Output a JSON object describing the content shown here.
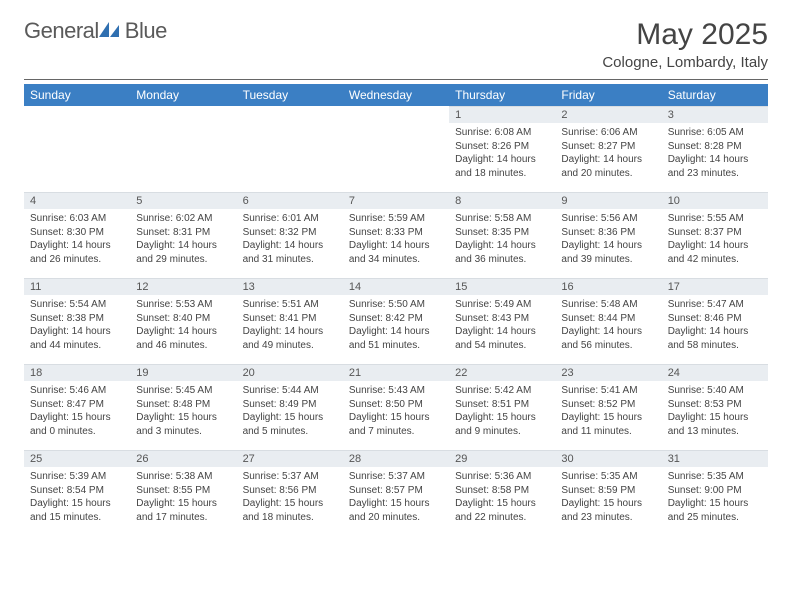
{
  "brand": {
    "name_a": "General",
    "name_b": "Blue"
  },
  "title": "May 2025",
  "subtitle": "Cologne, Lombardy, Italy",
  "colors": {
    "header_bg": "#3b7fc4",
    "daynum_bg": "#e9edf1",
    "text": "#444444"
  },
  "columns": [
    "Sunday",
    "Monday",
    "Tuesday",
    "Wednesday",
    "Thursday",
    "Friday",
    "Saturday"
  ],
  "weeks": [
    [
      {
        "n": "",
        "sr": "",
        "ss": "",
        "dl": "",
        "empty": true
      },
      {
        "n": "",
        "sr": "",
        "ss": "",
        "dl": "",
        "empty": true
      },
      {
        "n": "",
        "sr": "",
        "ss": "",
        "dl": "",
        "empty": true
      },
      {
        "n": "",
        "sr": "",
        "ss": "",
        "dl": "",
        "empty": true
      },
      {
        "n": "1",
        "sr": "Sunrise: 6:08 AM",
        "ss": "Sunset: 8:26 PM",
        "dl": "Daylight: 14 hours and 18 minutes."
      },
      {
        "n": "2",
        "sr": "Sunrise: 6:06 AM",
        "ss": "Sunset: 8:27 PM",
        "dl": "Daylight: 14 hours and 20 minutes."
      },
      {
        "n": "3",
        "sr": "Sunrise: 6:05 AM",
        "ss": "Sunset: 8:28 PM",
        "dl": "Daylight: 14 hours and 23 minutes."
      }
    ],
    [
      {
        "n": "4",
        "sr": "Sunrise: 6:03 AM",
        "ss": "Sunset: 8:30 PM",
        "dl": "Daylight: 14 hours and 26 minutes."
      },
      {
        "n": "5",
        "sr": "Sunrise: 6:02 AM",
        "ss": "Sunset: 8:31 PM",
        "dl": "Daylight: 14 hours and 29 minutes."
      },
      {
        "n": "6",
        "sr": "Sunrise: 6:01 AM",
        "ss": "Sunset: 8:32 PM",
        "dl": "Daylight: 14 hours and 31 minutes."
      },
      {
        "n": "7",
        "sr": "Sunrise: 5:59 AM",
        "ss": "Sunset: 8:33 PM",
        "dl": "Daylight: 14 hours and 34 minutes."
      },
      {
        "n": "8",
        "sr": "Sunrise: 5:58 AM",
        "ss": "Sunset: 8:35 PM",
        "dl": "Daylight: 14 hours and 36 minutes."
      },
      {
        "n": "9",
        "sr": "Sunrise: 5:56 AM",
        "ss": "Sunset: 8:36 PM",
        "dl": "Daylight: 14 hours and 39 minutes."
      },
      {
        "n": "10",
        "sr": "Sunrise: 5:55 AM",
        "ss": "Sunset: 8:37 PM",
        "dl": "Daylight: 14 hours and 42 minutes."
      }
    ],
    [
      {
        "n": "11",
        "sr": "Sunrise: 5:54 AM",
        "ss": "Sunset: 8:38 PM",
        "dl": "Daylight: 14 hours and 44 minutes."
      },
      {
        "n": "12",
        "sr": "Sunrise: 5:53 AM",
        "ss": "Sunset: 8:40 PM",
        "dl": "Daylight: 14 hours and 46 minutes."
      },
      {
        "n": "13",
        "sr": "Sunrise: 5:51 AM",
        "ss": "Sunset: 8:41 PM",
        "dl": "Daylight: 14 hours and 49 minutes."
      },
      {
        "n": "14",
        "sr": "Sunrise: 5:50 AM",
        "ss": "Sunset: 8:42 PM",
        "dl": "Daylight: 14 hours and 51 minutes."
      },
      {
        "n": "15",
        "sr": "Sunrise: 5:49 AM",
        "ss": "Sunset: 8:43 PM",
        "dl": "Daylight: 14 hours and 54 minutes."
      },
      {
        "n": "16",
        "sr": "Sunrise: 5:48 AM",
        "ss": "Sunset: 8:44 PM",
        "dl": "Daylight: 14 hours and 56 minutes."
      },
      {
        "n": "17",
        "sr": "Sunrise: 5:47 AM",
        "ss": "Sunset: 8:46 PM",
        "dl": "Daylight: 14 hours and 58 minutes."
      }
    ],
    [
      {
        "n": "18",
        "sr": "Sunrise: 5:46 AM",
        "ss": "Sunset: 8:47 PM",
        "dl": "Daylight: 15 hours and 0 minutes."
      },
      {
        "n": "19",
        "sr": "Sunrise: 5:45 AM",
        "ss": "Sunset: 8:48 PM",
        "dl": "Daylight: 15 hours and 3 minutes."
      },
      {
        "n": "20",
        "sr": "Sunrise: 5:44 AM",
        "ss": "Sunset: 8:49 PM",
        "dl": "Daylight: 15 hours and 5 minutes."
      },
      {
        "n": "21",
        "sr": "Sunrise: 5:43 AM",
        "ss": "Sunset: 8:50 PM",
        "dl": "Daylight: 15 hours and 7 minutes."
      },
      {
        "n": "22",
        "sr": "Sunrise: 5:42 AM",
        "ss": "Sunset: 8:51 PM",
        "dl": "Daylight: 15 hours and 9 minutes."
      },
      {
        "n": "23",
        "sr": "Sunrise: 5:41 AM",
        "ss": "Sunset: 8:52 PM",
        "dl": "Daylight: 15 hours and 11 minutes."
      },
      {
        "n": "24",
        "sr": "Sunrise: 5:40 AM",
        "ss": "Sunset: 8:53 PM",
        "dl": "Daylight: 15 hours and 13 minutes."
      }
    ],
    [
      {
        "n": "25",
        "sr": "Sunrise: 5:39 AM",
        "ss": "Sunset: 8:54 PM",
        "dl": "Daylight: 15 hours and 15 minutes."
      },
      {
        "n": "26",
        "sr": "Sunrise: 5:38 AM",
        "ss": "Sunset: 8:55 PM",
        "dl": "Daylight: 15 hours and 17 minutes."
      },
      {
        "n": "27",
        "sr": "Sunrise: 5:37 AM",
        "ss": "Sunset: 8:56 PM",
        "dl": "Daylight: 15 hours and 18 minutes."
      },
      {
        "n": "28",
        "sr": "Sunrise: 5:37 AM",
        "ss": "Sunset: 8:57 PM",
        "dl": "Daylight: 15 hours and 20 minutes."
      },
      {
        "n": "29",
        "sr": "Sunrise: 5:36 AM",
        "ss": "Sunset: 8:58 PM",
        "dl": "Daylight: 15 hours and 22 minutes."
      },
      {
        "n": "30",
        "sr": "Sunrise: 5:35 AM",
        "ss": "Sunset: 8:59 PM",
        "dl": "Daylight: 15 hours and 23 minutes."
      },
      {
        "n": "31",
        "sr": "Sunrise: 5:35 AM",
        "ss": "Sunset: 9:00 PM",
        "dl": "Daylight: 15 hours and 25 minutes."
      }
    ]
  ]
}
